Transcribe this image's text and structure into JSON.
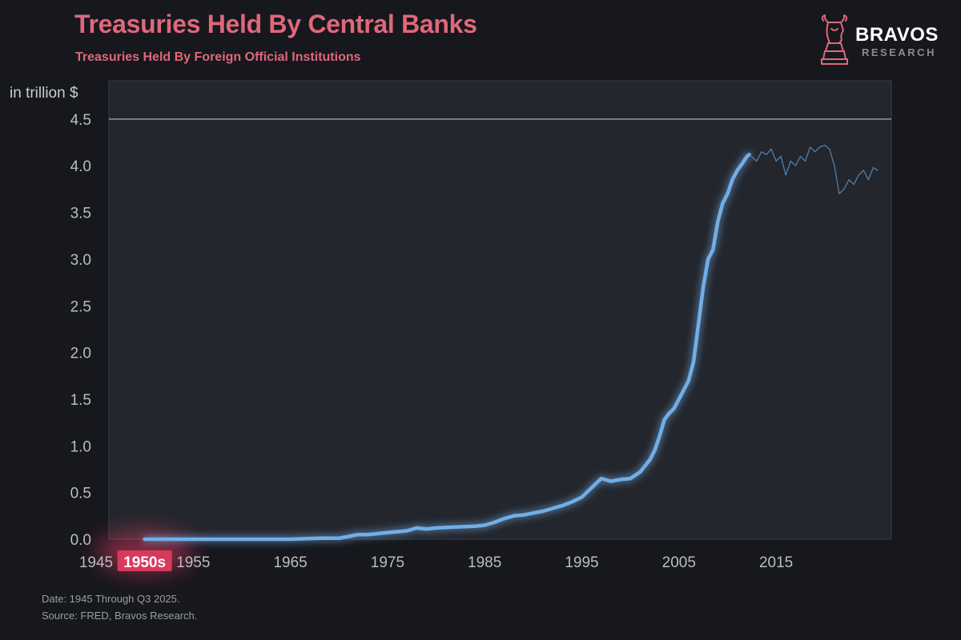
{
  "header": {
    "title": "Treasuries Held By Central Banks",
    "subtitle": "Treasuries Held By Foreign Official Institutions"
  },
  "brand": {
    "name": "BRAVOS",
    "sub": "RESEARCH",
    "logo_icon": "bull-head-chess-knight-icon"
  },
  "axis_unit": "in trillion $",
  "footer": {
    "date": "Date: 1945 Through Q3 2025.",
    "source": "Source: FRED, Bravos Research."
  },
  "colors": {
    "background": "#16181d",
    "plot_background": "#23262d",
    "accent": "#e0677b",
    "line": "#72aee6",
    "highlight": "#d63a5f"
  },
  "chart_data": {
    "type": "line",
    "title": "Treasuries Held By Central Banks",
    "subtitle": "Treasuries Held By Foreign Official Institutions",
    "ylabel": "in trillion $",
    "xlim": [
      1945,
      2025.5
    ],
    "ylim": [
      0,
      4.5
    ],
    "grid": false,
    "x_ticks": [
      {
        "value": 1945,
        "label": "1945"
      },
      {
        "value": 1950,
        "label": "1950s",
        "highlighted": true
      },
      {
        "value": 1955,
        "label": "1955"
      },
      {
        "value": 1965,
        "label": "1965"
      },
      {
        "value": 1975,
        "label": "1975"
      },
      {
        "value": 1985,
        "label": "1985"
      },
      {
        "value": 1995,
        "label": "1995"
      },
      {
        "value": 2005,
        "label": "2005"
      },
      {
        "value": 2015,
        "label": "2015"
      }
    ],
    "y_ticks": [
      "0.0",
      "0.5",
      "1.0",
      "1.5",
      "2.0",
      "2.5",
      "3.0",
      "3.5",
      "4.0",
      "4.5"
    ],
    "series": [
      {
        "highlighted": true,
        "x": [
          1950,
          1955,
          1960,
          1965,
          1968,
          1970,
          1971,
          1972,
          1973,
          1975,
          1977,
          1978,
          1979,
          1980,
          1982,
          1984,
          1985,
          1986,
          1987,
          1988,
          1989,
          1990,
          1991,
          1992,
          1993,
          1994,
          1995,
          1996,
          1997,
          1998,
          1999,
          2000,
          2001,
          2002,
          2002.5,
          2003,
          2003.5,
          2004,
          2004.5,
          2005,
          2005.5,
          2006,
          2006.5,
          2007,
          2007.5,
          2008,
          2008.5,
          2009,
          2009.5,
          2010,
          2010.5,
          2011,
          2011.5,
          2012,
          2012.25
        ],
        "y": [
          0.0,
          0.0,
          0.0,
          0.0,
          0.01,
          0.01,
          0.03,
          0.05,
          0.05,
          0.07,
          0.09,
          0.12,
          0.11,
          0.12,
          0.13,
          0.14,
          0.15,
          0.18,
          0.22,
          0.25,
          0.26,
          0.28,
          0.3,
          0.33,
          0.36,
          0.4,
          0.45,
          0.55,
          0.65,
          0.62,
          0.64,
          0.65,
          0.72,
          0.85,
          0.95,
          1.1,
          1.28,
          1.35,
          1.4,
          1.5,
          1.6,
          1.7,
          1.9,
          2.3,
          2.7,
          3.0,
          3.1,
          3.4,
          3.6,
          3.7,
          3.85,
          3.95,
          4.02,
          4.1,
          4.12
        ]
      },
      {
        "highlighted": false,
        "x": [
          2012.25,
          2013,
          2013.5,
          2014,
          2014.5,
          2015,
          2015.5,
          2016,
          2016.5,
          2017,
          2017.5,
          2018,
          2018.5,
          2019,
          2019.5,
          2020,
          2020.5,
          2021,
          2021.5,
          2022,
          2022.5,
          2023,
          2023.5,
          2024,
          2024.5,
          2025,
          2025.5
        ],
        "y": [
          4.12,
          4.05,
          4.15,
          4.12,
          4.18,
          4.05,
          4.1,
          3.9,
          4.05,
          4.0,
          4.1,
          4.05,
          4.2,
          4.15,
          4.2,
          4.22,
          4.18,
          4.0,
          3.7,
          3.75,
          3.85,
          3.8,
          3.9,
          3.95,
          3.85,
          3.98,
          3.95
        ]
      }
    ]
  }
}
